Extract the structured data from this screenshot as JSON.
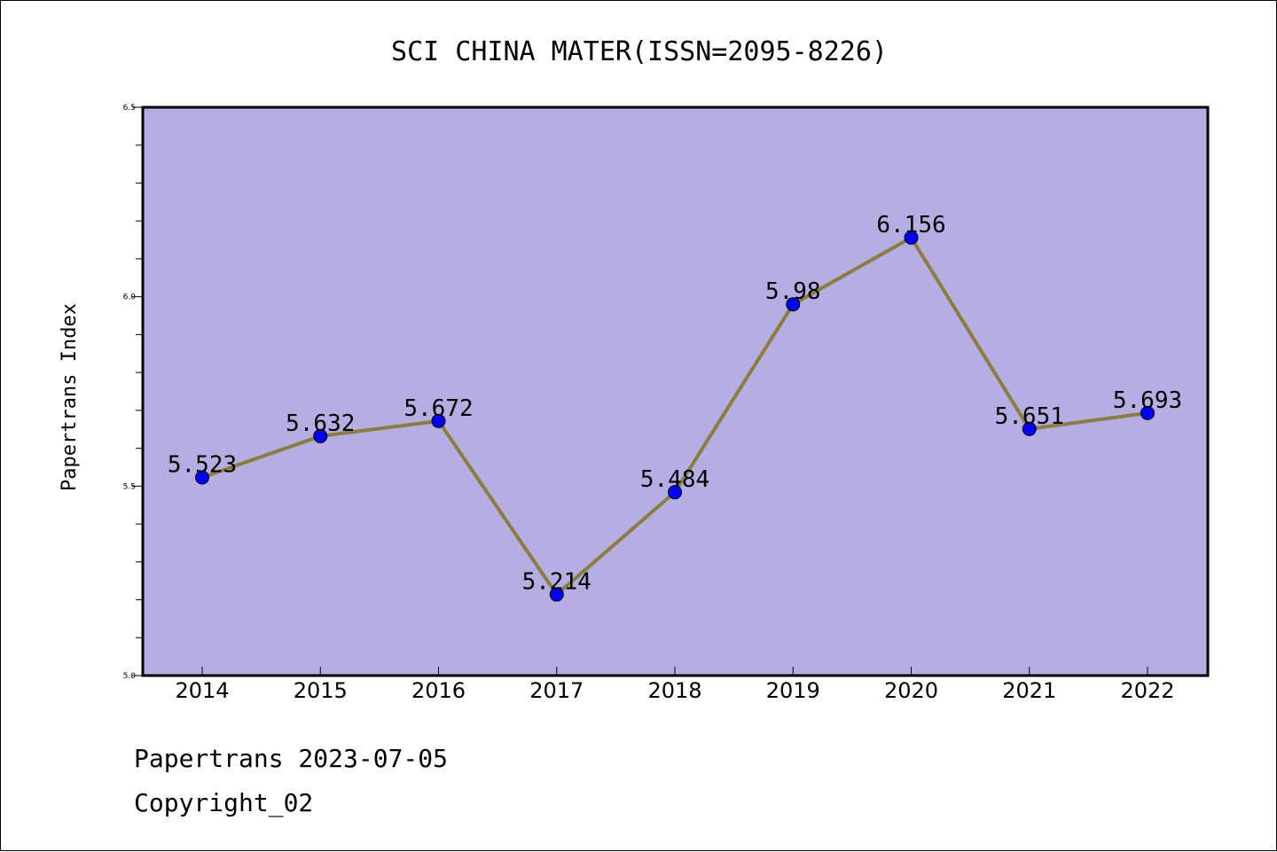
{
  "chart_data": {
    "type": "line",
    "title": "SCI CHINA MATER(ISSN=2095-8226)",
    "ylabel": "Papertrans Index",
    "xlabel": "",
    "categories": [
      "2014",
      "2015",
      "2016",
      "2017",
      "2018",
      "2019",
      "2020",
      "2021",
      "2022"
    ],
    "values": [
      5.523,
      5.632,
      5.672,
      5.214,
      5.484,
      5.98,
      6.156,
      5.651,
      5.693
    ],
    "data_labels": [
      "5.523",
      "5.632",
      "5.672",
      "5.214",
      "5.484",
      "5.98",
      "6.156",
      "5.651",
      "5.693"
    ],
    "ylim": [
      5.0,
      6.5
    ],
    "yticks": [
      "5.0",
      "5.5",
      "6.0",
      "6.5"
    ],
    "grid": false,
    "colors": {
      "plot_background": "#b4aee2",
      "line": "#8b7d3c",
      "marker": "#0000ff"
    }
  },
  "footer": {
    "line1": "Papertrans 2023-07-05",
    "line2": "Copyright_02"
  }
}
